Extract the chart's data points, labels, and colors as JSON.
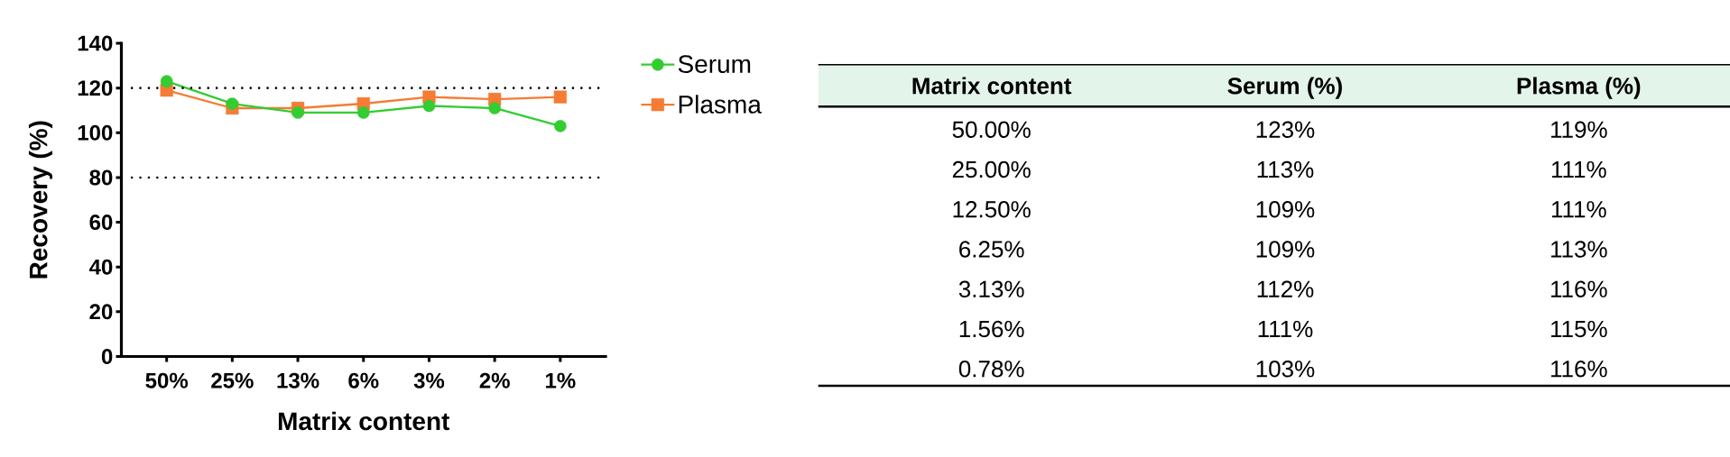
{
  "chart_data": {
    "type": "line",
    "xlabel": "Matrix content",
    "ylabel": "Recovery (%)",
    "categories": [
      "50%",
      "25%",
      "13%",
      "6%",
      "3%",
      "2%",
      "1%"
    ],
    "series": [
      {
        "name": "Serum",
        "color": "#33cc33",
        "marker": "circle",
        "values": [
          123,
          113,
          109,
          109,
          112,
          111,
          103
        ]
      },
      {
        "name": "Plasma",
        "color": "#f47c34",
        "marker": "square",
        "values": [
          119,
          111,
          111,
          113,
          116,
          115,
          116
        ]
      }
    ],
    "ylim": [
      0,
      140
    ],
    "yticks": [
      0,
      20,
      40,
      60,
      80,
      100,
      120,
      140
    ],
    "ref_lines": [
      {
        "axis": "y",
        "value": 120,
        "color": "#000000",
        "line_style": "dotted"
      },
      {
        "axis": "y",
        "value": 80,
        "color": "#000000",
        "line_style": "dotted"
      }
    ],
    "legend": "top right",
    "annotations": [
      "Matrix content",
      "Serum (%)",
      "Plasma (%)",
      "50.00%",
      "123%",
      "119%",
      "25.00%",
      "113%",
      "111%",
      "12.50%",
      "109%",
      "111%",
      "6.25%",
      "109%",
      "113%",
      "3.13%",
      "112%",
      "116%",
      "1.56%",
      "111%",
      "115%",
      "0.78%",
      "103%",
      "116%"
    ]
  }
}
